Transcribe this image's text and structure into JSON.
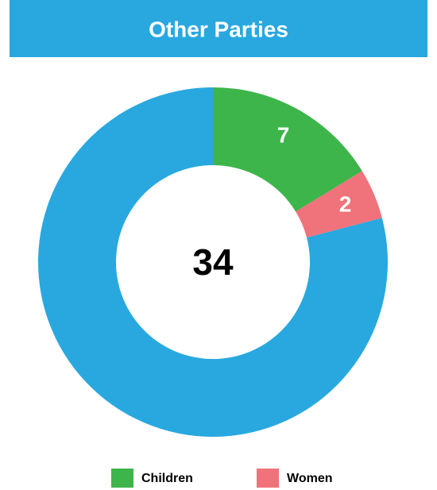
{
  "chart_data": {
    "type": "donut",
    "title": "Other Parties",
    "categories": [
      "Children",
      "Women",
      null
    ],
    "values": [
      7,
      2,
      34
    ],
    "colors": [
      "#3db54a",
      "#f0727a",
      "#29a8e0"
    ],
    "legend": "bottom"
  }
}
